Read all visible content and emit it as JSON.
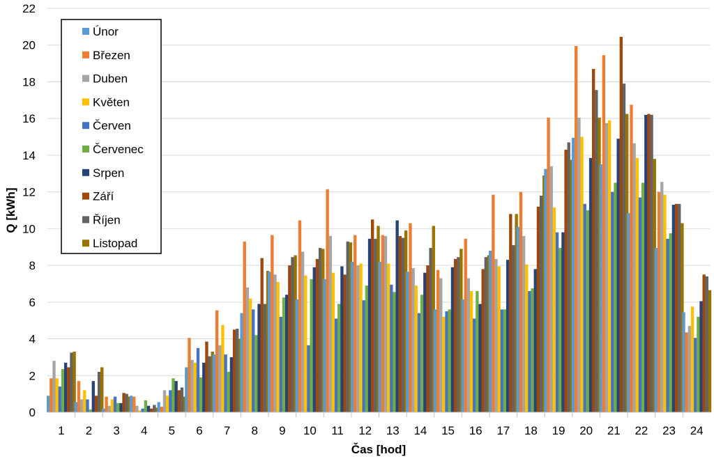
{
  "chart_data": {
    "type": "bar",
    "xlabel": "Čas [hod]",
    "ylabel": "Q [kWh]",
    "ylim": [
      0,
      22
    ],
    "yticks": [
      0,
      2,
      4,
      6,
      8,
      10,
      12,
      14,
      16,
      18,
      20,
      22
    ],
    "grid": true,
    "legend_position": "top-left",
    "categories": [
      "1",
      "2",
      "3",
      "4",
      "5",
      "6",
      "7",
      "8",
      "9",
      "10",
      "11",
      "12",
      "13",
      "14",
      "15",
      "16",
      "17",
      "18",
      "19",
      "20",
      "21",
      "22",
      "23",
      "24"
    ],
    "series": [
      {
        "name": "Únor",
        "color": "#5B9BD5",
        "values": [
          0.9,
          0.55,
          0.2,
          0.9,
          0.55,
          2.45,
          3.15,
          5.4,
          7.65,
          6.15,
          7.25,
          8.2,
          8.2,
          7.65,
          5.6,
          6.15,
          8.8,
          10.1,
          13.25,
          14.95,
          13.5,
          10.85,
          8.95,
          5.45
        ]
      },
      {
        "name": "Březen",
        "color": "#ED7D31",
        "values": [
          1.85,
          1.7,
          0.85,
          0.85,
          0.3,
          4.05,
          5.55,
          9.3,
          9.65,
          10.45,
          12.15,
          9.65,
          9.65,
          10.3,
          7.75,
          9.45,
          11.85,
          12.0,
          16.05,
          19.95,
          19.45,
          16.75,
          12.0,
          4.35
        ]
      },
      {
        "name": "Duben",
        "color": "#A5A5A5",
        "values": [
          2.8,
          0.7,
          0.35,
          0.35,
          1.2,
          2.85,
          3.65,
          6.8,
          7.5,
          8.75,
          9.6,
          8.0,
          9.6,
          7.85,
          7.3,
          7.3,
          8.35,
          9.6,
          13.4,
          16.05,
          15.75,
          14.65,
          12.55,
          4.7
        ]
      },
      {
        "name": "Květen",
        "color": "#FFC000",
        "values": [
          1.85,
          1.2,
          0.7,
          0.1,
          0.9,
          2.7,
          4.75,
          6.2,
          7.1,
          7.45,
          7.6,
          8.1,
          8.1,
          6.9,
          5.2,
          6.6,
          7.95,
          8.05,
          11.15,
          15.0,
          15.9,
          13.85,
          11.85,
          5.75
        ]
      },
      {
        "name": "Červen",
        "color": "#4472C4",
        "values": [
          1.4,
          0.7,
          0.85,
          0.2,
          1.2,
          3.5,
          3.15,
          5.6,
          5.2,
          3.65,
          5.1,
          6.1,
          6.95,
          5.4,
          5.5,
          5.1,
          5.6,
          6.6,
          9.8,
          11.35,
          12.0,
          11.7,
          9.45,
          4.05
        ]
      },
      {
        "name": "Červenec",
        "color": "#70AD47",
        "values": [
          2.35,
          0.15,
          0.5,
          0.65,
          1.85,
          1.9,
          2.2,
          4.2,
          6.25,
          7.25,
          5.9,
          6.9,
          6.55,
          6.4,
          5.6,
          6.6,
          5.6,
          6.75,
          8.95,
          11.0,
          12.5,
          12.5,
          9.75,
          5.2
        ]
      },
      {
        "name": "Srpen",
        "color": "#264478",
        "values": [
          2.7,
          1.7,
          0.5,
          0.35,
          1.7,
          2.7,
          3.0,
          5.9,
          6.4,
          7.9,
          7.95,
          9.45,
          10.45,
          7.6,
          7.9,
          5.9,
          8.3,
          7.8,
          9.8,
          13.85,
          14.9,
          16.2,
          11.3,
          6.05
        ]
      },
      {
        "name": "Září",
        "color": "#9E480E",
        "values": [
          2.45,
          0.9,
          1.05,
          0.2,
          1.2,
          3.85,
          4.5,
          8.4,
          8.0,
          8.35,
          7.5,
          10.5,
          9.6,
          8.0,
          8.35,
          7.8,
          10.8,
          11.2,
          14.3,
          18.7,
          20.45,
          16.25,
          11.35,
          7.5
        ]
      },
      {
        "name": "Říjen",
        "color": "#636363",
        "values": [
          3.25,
          2.2,
          1.0,
          0.4,
          1.35,
          3.05,
          4.55,
          5.9,
          8.45,
          8.95,
          9.3,
          9.45,
          9.5,
          8.95,
          8.45,
          8.45,
          9.1,
          11.8,
          14.7,
          17.55,
          17.9,
          16.2,
          11.35,
          7.4
        ]
      },
      {
        "name": "Listopad",
        "color": "#997300",
        "values": [
          3.3,
          2.45,
          0.85,
          0.25,
          0.85,
          3.3,
          4.0,
          7.7,
          8.55,
          8.9,
          9.25,
          10.15,
          9.9,
          10.15,
          8.9,
          8.55,
          10.8,
          12.9,
          13.75,
          16.05,
          16.25,
          13.8,
          10.3,
          6.65
        ]
      }
    ]
  }
}
